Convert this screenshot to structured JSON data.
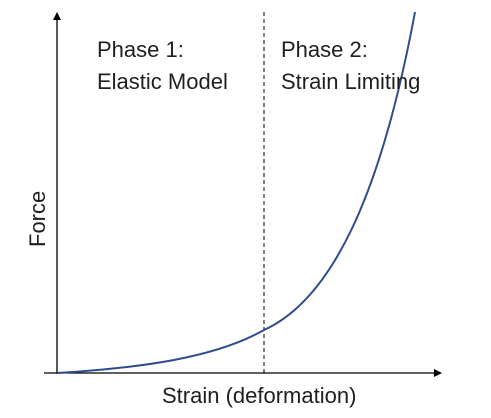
{
  "diagram": {
    "phase1": {
      "line1": "Phase 1:",
      "line2": "Elastic Model"
    },
    "phase2": {
      "line1": "Phase 2:",
      "line2": "Strain Limiting"
    },
    "x_axis_label": "Strain (deformation)",
    "y_axis_label": "Force"
  },
  "colors": {
    "axis": "#000000",
    "curve": "#2f4c8f",
    "divider": "#000000",
    "text": "#1f1f1f"
  }
}
